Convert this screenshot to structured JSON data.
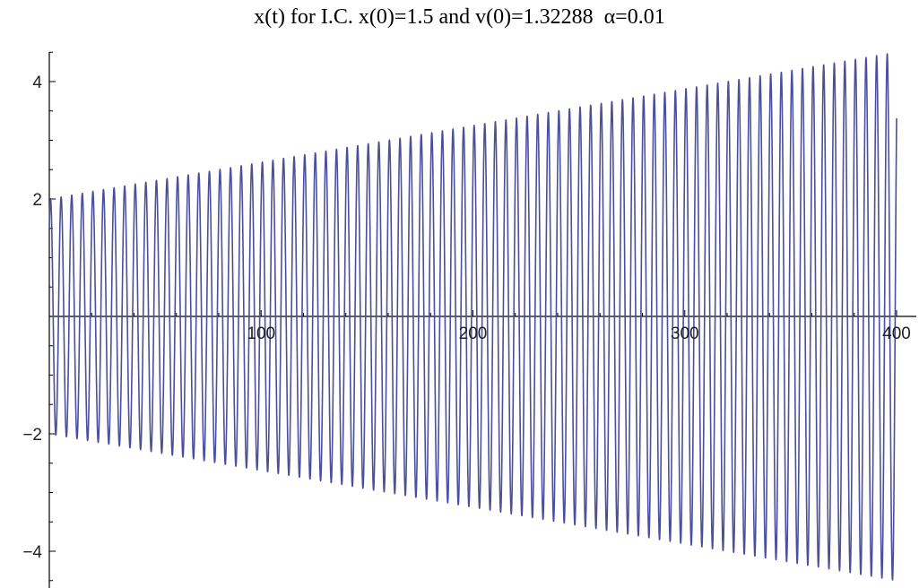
{
  "chart_data": {
    "type": "line",
    "title": "x(t) for I.C. x(0)=1.5 and v(0)=1.32288  α=0.01",
    "xlabel": "",
    "ylabel": "",
    "xlim": [
      0,
      400
    ],
    "ylim": [
      -4.6,
      4.6
    ],
    "x_ticks": [
      100,
      200,
      300,
      400
    ],
    "x_tick_labels": [
      "100",
      "200",
      "300",
      "400"
    ],
    "y_ticks": [
      -4,
      -2,
      2,
      4
    ],
    "y_tick_labels": [
      "−4",
      "−2",
      "2",
      "4"
    ],
    "grid": false,
    "legend": "none",
    "series": [
      {
        "color": "#4b4f9c",
        "description": "oscillation with linearly growing amplitude",
        "x0": 1.5,
        "v0": 1.32288,
        "alpha": 0.01,
        "cycles": 80,
        "envelope_t": [
          0,
          400
        ],
        "envelope_amplitude": [
          2.0,
          4.5
        ]
      }
    ]
  }
}
